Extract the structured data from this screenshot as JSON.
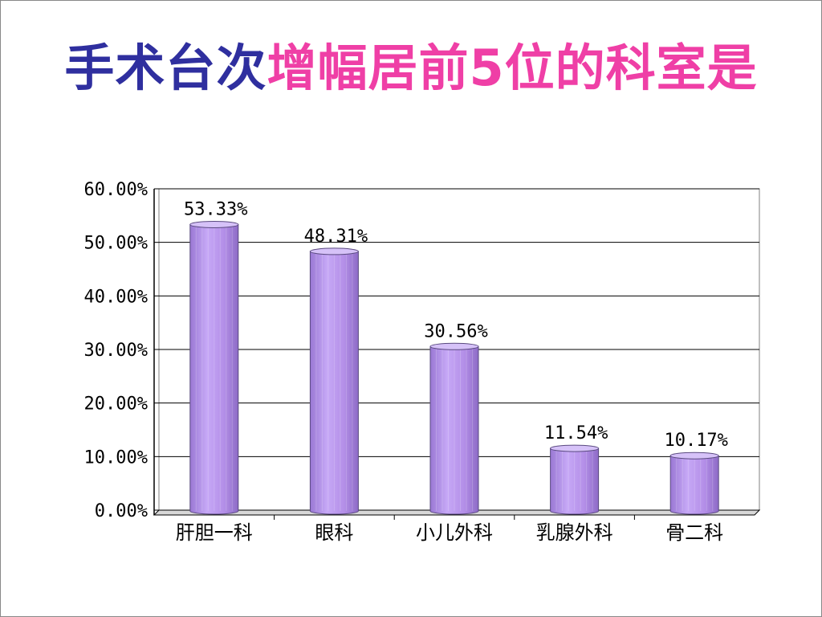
{
  "title": {
    "part1": "手术台次",
    "part2": "增幅居前5位的科室是"
  },
  "colors": {
    "title_part1": "#2f2f9f",
    "title_part2": "#ef3fa6",
    "bar_fill": "#b896ec",
    "bar_edge": "#5a4a80",
    "grid": "#000000"
  },
  "chart_data": {
    "type": "bar",
    "categories": [
      "肝胆一科",
      "眼科",
      "小儿外科",
      "乳腺外科",
      "骨二科"
    ],
    "values": [
      53.33,
      48.31,
      30.56,
      11.54,
      10.17
    ],
    "data_labels": [
      "53.33%",
      "48.31%",
      "30.56%",
      "11.54%",
      "10.17%"
    ],
    "ylim": [
      0,
      60
    ],
    "yticks": [
      "0.00%",
      "10.00%",
      "20.00%",
      "30.00%",
      "40.00%",
      "50.00%",
      "60.00%"
    ],
    "grid": true,
    "bar_style": "3d-cylinder",
    "legend": "none"
  }
}
